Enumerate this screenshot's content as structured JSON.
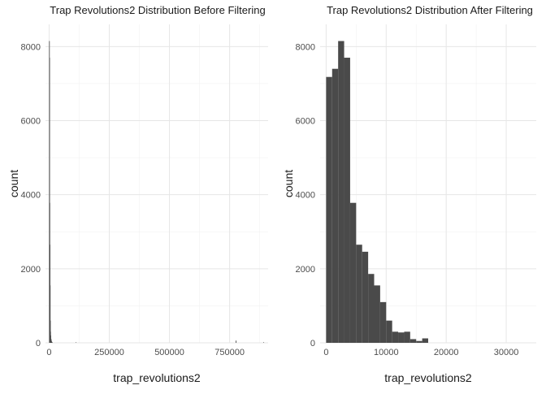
{
  "chart_data": [
    {
      "type": "histogram",
      "title": "Trap Revolutions2 Distribution Before Filtering",
      "xlabel": "trap_revolutions2",
      "ylabel": "count",
      "xlim": [
        -15000,
        910000
      ],
      "ylim": [
        0,
        8600
      ],
      "xticks": [
        0,
        250000,
        500000,
        750000
      ],
      "xtick_labels": [
        "0",
        "250000",
        "500000",
        "750000"
      ],
      "yticks": [
        0,
        2000,
        4000,
        6000,
        8000
      ],
      "ytick_labels": [
        "0",
        "2000",
        "4000",
        "6000",
        "8000"
      ],
      "bar_color": "#4a4a4a",
      "grid": true,
      "bins": [
        {
          "x0": 0,
          "x1": 800,
          "count": 8150
        },
        {
          "x0": 800,
          "x1": 1600,
          "count": 7700
        },
        {
          "x0": 1600,
          "x1": 2400,
          "count": 3780
        },
        {
          "x0": 2400,
          "x1": 3200,
          "count": 2650
        },
        {
          "x0": 3200,
          "x1": 4000,
          "count": 1550
        },
        {
          "x0": 4000,
          "x1": 4800,
          "count": 600
        },
        {
          "x0": 4800,
          "x1": 5600,
          "count": 300
        },
        {
          "x0": 5600,
          "x1": 6400,
          "count": 200
        },
        {
          "x0": 6400,
          "x1": 7200,
          "count": 100
        },
        {
          "x0": 7200,
          "x1": 8000,
          "count": 100
        },
        {
          "x0": 8000,
          "x1": 8800,
          "count": 60
        },
        {
          "x0": 8800,
          "x1": 9600,
          "count": 40
        },
        {
          "x0": 9600,
          "x1": 10400,
          "count": 30
        },
        {
          "x0": 10400,
          "x1": 11200,
          "count": 20
        },
        {
          "x0": 11200,
          "x1": 12000,
          "count": 15
        },
        {
          "x0": 12000,
          "x1": 14000,
          "count": 10
        },
        {
          "x0": 110000,
          "x1": 112000,
          "count": 15
        },
        {
          "x0": 775000,
          "x1": 778000,
          "count": 60
        },
        {
          "x0": 890000,
          "x1": 893000,
          "count": 15
        }
      ]
    },
    {
      "type": "histogram",
      "title": "Trap Revolutions2 Distribution After Filtering",
      "xlabel": "trap_revolutions2",
      "ylabel": "count",
      "xlim": [
        -1000,
        35000
      ],
      "ylim": [
        0,
        8600
      ],
      "xticks": [
        0,
        10000,
        20000,
        30000
      ],
      "xtick_labels": [
        "0",
        "10000",
        "20000",
        "30000"
      ],
      "yticks": [
        0,
        2000,
        4000,
        6000,
        8000
      ],
      "ytick_labels": [
        "0",
        "2000",
        "4000",
        "6000",
        "8000"
      ],
      "bar_color": "#4a4a4a",
      "grid": true,
      "bins": [
        {
          "x0": 0,
          "x1": 1000,
          "count": 7180
        },
        {
          "x0": 1000,
          "x1": 2000,
          "count": 7400
        },
        {
          "x0": 2000,
          "x1": 3000,
          "count": 8150
        },
        {
          "x0": 3000,
          "x1": 4000,
          "count": 7700
        },
        {
          "x0": 4000,
          "x1": 5000,
          "count": 3780
        },
        {
          "x0": 5000,
          "x1": 6000,
          "count": 2650
        },
        {
          "x0": 6000,
          "x1": 7000,
          "count": 2460
        },
        {
          "x0": 7000,
          "x1": 8000,
          "count": 1860
        },
        {
          "x0": 8000,
          "x1": 9000,
          "count": 1550
        },
        {
          "x0": 9000,
          "x1": 10000,
          "count": 1100
        },
        {
          "x0": 10000,
          "x1": 11000,
          "count": 600
        },
        {
          "x0": 11000,
          "x1": 12000,
          "count": 300
        },
        {
          "x0": 12000,
          "x1": 13000,
          "count": 280
        },
        {
          "x0": 13000,
          "x1": 14000,
          "count": 300
        },
        {
          "x0": 14000,
          "x1": 15000,
          "count": 100
        },
        {
          "x0": 15000,
          "x1": 16000,
          "count": 50
        },
        {
          "x0": 16000,
          "x1": 17000,
          "count": 120
        }
      ]
    }
  ]
}
